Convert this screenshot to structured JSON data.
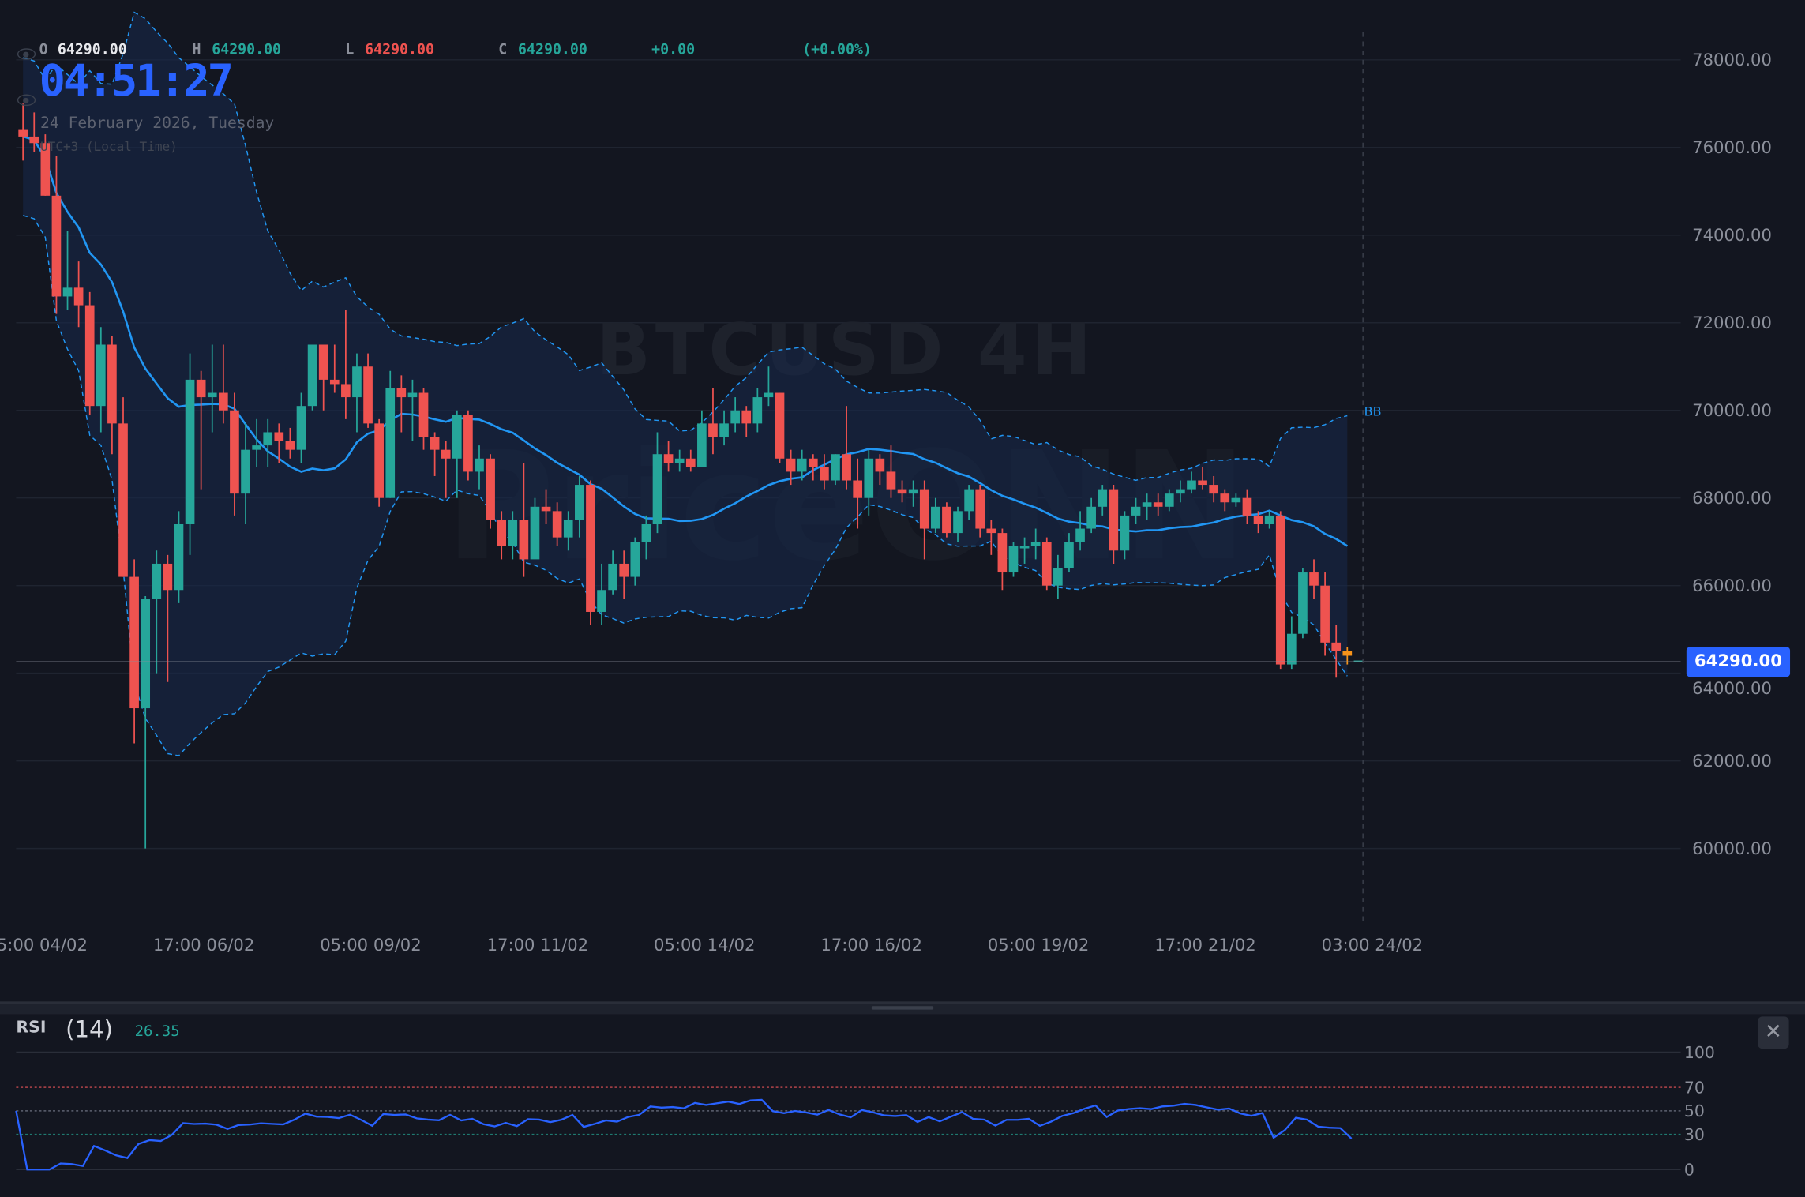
{
  "header": {
    "open_label": "O",
    "open": "64290.00",
    "high_label": "H",
    "high": "64290.00",
    "low_label": "L",
    "low": "64290.00",
    "close_label": "C",
    "close": "64290.00",
    "change": "+0.00",
    "change_pct": "(+0.00%)",
    "clock": "04:51:27",
    "date": "24 February 2026, Tuesday",
    "timezone": "UTC+3 (Local Time)"
  },
  "watermark": {
    "symbol": "BTCUSD 4H",
    "logo": "PriceONN"
  },
  "price_tag": "64290.00",
  "indicator_label": "BB",
  "rsi_panel": {
    "title": "RSI",
    "length": "(14)",
    "value": "26.35",
    "close_icon": "close-icon"
  },
  "colors": {
    "up": "#26a69a",
    "down": "#ef5350",
    "ma": "#2196f3",
    "rsi": "#2962ff",
    "accent": "#2962ff",
    "last": "#f7931a"
  },
  "chart_data": [
    {
      "type": "candlestick",
      "symbol": "BTCUSD",
      "interval": "4H",
      "ylim": [
        58500,
        78500
      ],
      "y_ticks": [
        "78000.00",
        "76000.00",
        "74000.00",
        "72000.00",
        "70000.00",
        "68000.00",
        "66000.00",
        "64000.00",
        "62000.00",
        "60000.00"
      ],
      "x_ticks": [
        "05:00 04/02",
        "17:00 06/02",
        "05:00 09/02",
        "17:00 11/02",
        "05:00 14/02",
        "17:00 16/02",
        "05:00 19/02",
        "17:00 21/02",
        "03:00 24/02"
      ],
      "grid": true,
      "overlay": "Bollinger Bands (20, 2)",
      "ohlc": [
        [
          76400,
          77000,
          75700,
          76250
        ],
        [
          76250,
          76800,
          75900,
          76100
        ],
        [
          76100,
          76300,
          74900,
          74900
        ],
        [
          74900,
          75800,
          72200,
          72600
        ],
        [
          72600,
          74100,
          72300,
          72800
        ],
        [
          72800,
          73400,
          71900,
          72400
        ],
        [
          72400,
          72700,
          69900,
          70100
        ],
        [
          70100,
          71900,
          69500,
          71500
        ],
        [
          71500,
          71700,
          69000,
          69700
        ],
        [
          69700,
          70300,
          66200,
          66200
        ],
        [
          66200,
          66600,
          62400,
          63200
        ],
        [
          63200,
          65760,
          60000,
          65700
        ],
        [
          65700,
          66800,
          64000,
          66500
        ],
        [
          66500,
          66700,
          63800,
          65900
        ],
        [
          65900,
          67700,
          65600,
          67400
        ],
        [
          67400,
          71300,
          66700,
          70700
        ],
        [
          70700,
          70900,
          68200,
          70300
        ],
        [
          70300,
          71500,
          69500,
          70400
        ],
        [
          70400,
          71500,
          69700,
          70000
        ],
        [
          70000,
          70400,
          67600,
          68100
        ],
        [
          68100,
          69700,
          67400,
          69100
        ],
        [
          69100,
          69800,
          68700,
          69200
        ],
        [
          69200,
          69800,
          68700,
          69500
        ],
        [
          69500,
          69700,
          68800,
          69300
        ],
        [
          69300,
          69600,
          68900,
          69100
        ],
        [
          69100,
          70400,
          68800,
          70100
        ],
        [
          70100,
          71500,
          70000,
          71500
        ],
        [
          71500,
          71500,
          70000,
          70700
        ],
        [
          70700,
          71500,
          70400,
          70600
        ],
        [
          70600,
          72300,
          69800,
          70300
        ],
        [
          70300,
          71300,
          69500,
          71000
        ],
        [
          71000,
          71300,
          69600,
          69700
        ],
        [
          69700,
          69800,
          67800,
          68000
        ],
        [
          68000,
          70900,
          68000,
          70500
        ],
        [
          70500,
          70800,
          69500,
          70300
        ],
        [
          70300,
          70700,
          69300,
          70400
        ],
        [
          70400,
          70500,
          69100,
          69400
        ],
        [
          69400,
          69500,
          68500,
          69100
        ],
        [
          69100,
          69300,
          68000,
          68900
        ],
        [
          68900,
          70000,
          68000,
          69900
        ],
        [
          69900,
          70000,
          68400,
          68600
        ],
        [
          68600,
          69200,
          68200,
          68900
        ],
        [
          68900,
          69000,
          67300,
          67500
        ],
        [
          67500,
          67700,
          66600,
          66900
        ],
        [
          66900,
          67700,
          66600,
          67500
        ],
        [
          67500,
          68800,
          66200,
          66600
        ],
        [
          66600,
          68000,
          66700,
          67800
        ],
        [
          67800,
          68200,
          67400,
          67700
        ],
        [
          67700,
          67900,
          66900,
          67100
        ],
        [
          67100,
          67700,
          66800,
          67500
        ],
        [
          67500,
          68500,
          67100,
          68300
        ],
        [
          68300,
          68400,
          65100,
          65400
        ],
        [
          65400,
          66500,
          65100,
          65900
        ],
        [
          65900,
          66800,
          65800,
          66500
        ],
        [
          66500,
          66800,
          65700,
          66200
        ],
        [
          66200,
          67100,
          66000,
          67000
        ],
        [
          67000,
          67600,
          66600,
          67400
        ],
        [
          67400,
          69500,
          67200,
          69000
        ],
        [
          69000,
          69300,
          68600,
          68800
        ],
        [
          68800,
          69100,
          68600,
          68900
        ],
        [
          68900,
          69100,
          68600,
          68700
        ],
        [
          68700,
          70000,
          68700,
          69700
        ],
        [
          69700,
          70500,
          69000,
          69400
        ],
        [
          69400,
          70000,
          69200,
          69700
        ],
        [
          69700,
          70300,
          69500,
          70000
        ],
        [
          70000,
          70100,
          69400,
          69700
        ],
        [
          69700,
          70500,
          69500,
          70300
        ],
        [
          70300,
          71000,
          70100,
          70400
        ],
        [
          70400,
          70400,
          68800,
          68900
        ],
        [
          68900,
          69100,
          68300,
          68600
        ],
        [
          68600,
          69100,
          68400,
          68900
        ],
        [
          68900,
          69000,
          68400,
          68700
        ],
        [
          68700,
          69000,
          68200,
          68400
        ],
        [
          68400,
          69000,
          68300,
          69000
        ],
        [
          69000,
          70100,
          68200,
          68400
        ],
        [
          68400,
          68900,
          67300,
          68000
        ],
        [
          68000,
          69100,
          67600,
          68900
        ],
        [
          68900,
          69000,
          68300,
          68600
        ],
        [
          68600,
          69200,
          68000,
          68200
        ],
        [
          68200,
          68400,
          67900,
          68100
        ],
        [
          68100,
          68400,
          67800,
          68200
        ],
        [
          68200,
          68400,
          66600,
          67300
        ],
        [
          67300,
          68000,
          67200,
          67800
        ],
        [
          67800,
          67900,
          67100,
          67200
        ],
        [
          67200,
          67800,
          67000,
          67700
        ],
        [
          67700,
          68300,
          67500,
          68200
        ],
        [
          68200,
          68300,
          67100,
          67300
        ],
        [
          67300,
          67500,
          66700,
          67200
        ],
        [
          67200,
          67300,
          65900,
          66300
        ],
        [
          66300,
          67000,
          66200,
          66900
        ],
        [
          66850,
          67100,
          66500,
          66900
        ],
        [
          66900,
          67300,
          66600,
          67000
        ],
        [
          67000,
          67100,
          65900,
          66000
        ],
        [
          66000,
          66700,
          65700,
          66400
        ],
        [
          66400,
          67200,
          66300,
          67000
        ],
        [
          67000,
          67700,
          66800,
          67300
        ],
        [
          67300,
          68000,
          67200,
          67800
        ],
        [
          67800,
          68300,
          67600,
          68200
        ],
        [
          68200,
          68300,
          66500,
          66800
        ],
        [
          66800,
          67700,
          66600,
          67600
        ],
        [
          67600,
          68000,
          67400,
          67800
        ],
        [
          67800,
          68100,
          67500,
          67900
        ],
        [
          67900,
          68100,
          67600,
          67800
        ],
        [
          67800,
          68200,
          67700,
          68100
        ],
        [
          68100,
          68400,
          67900,
          68200
        ],
        [
          68200,
          68600,
          68100,
          68400
        ],
        [
          68400,
          68700,
          68200,
          68300
        ],
        [
          68300,
          68500,
          67900,
          68100
        ],
        [
          68100,
          68200,
          67700,
          67900
        ],
        [
          67900,
          68100,
          67800,
          68000
        ],
        [
          68000,
          68200,
          67400,
          67600
        ],
        [
          67600,
          67700,
          67200,
          67400
        ],
        [
          67400,
          67700,
          67300,
          67600
        ],
        [
          67600,
          67700,
          64100,
          64200
        ],
        [
          64200,
          65300,
          64100,
          64900
        ],
        [
          64900,
          66400,
          64800,
          66300
        ],
        [
          66300,
          66600,
          65700,
          66000
        ],
        [
          66000,
          66300,
          64400,
          64700
        ],
        [
          64700,
          65100,
          63900,
          64500
        ],
        [
          64500,
          64600,
          64200,
          64400
        ],
        [
          64290,
          64290,
          64290,
          64290
        ]
      ]
    },
    {
      "type": "line",
      "name": "RSI (14)",
      "ylim": [
        0,
        100
      ],
      "y_ticks": [
        "100",
        "70",
        "50",
        "30",
        "0"
      ],
      "levels": [
        70,
        50,
        30
      ],
      "last_value": 26.35
    }
  ]
}
